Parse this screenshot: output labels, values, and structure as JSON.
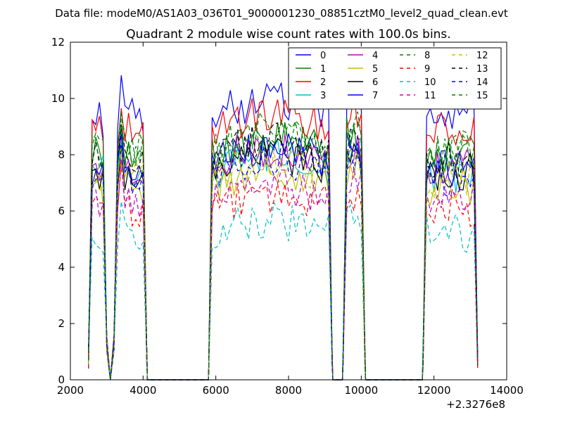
{
  "figure": {
    "suptitle": "Data file: modeM0/AS1A03_036T01_9000001230_08851cztM0_level2_quad_clean.evt",
    "title": "Quadrant 2 module wise count rates with 100.0s bins.",
    "x_offset_label": "+2.3276e8"
  },
  "chart_data": {
    "type": "line",
    "title": "Quadrant 2 module wise count rates with 100.0s bins.",
    "xlabel": "",
    "ylabel": "",
    "xlim": [
      2000,
      14000
    ],
    "ylim": [
      0,
      12
    ],
    "x_offset": 232760000,
    "xticks": [
      2000,
      4000,
      6000,
      8000,
      10000,
      12000,
      14000
    ],
    "yticks": [
      0,
      2,
      4,
      6,
      8,
      10,
      12
    ],
    "grid": false,
    "legend_position": "top-right",
    "legend_columns": 4,
    "segments": [
      {
        "x": [
          2500,
          2600,
          2700,
          2800,
          2900,
          3000,
          3100,
          3200,
          3300,
          3400,
          3500,
          3600,
          3700,
          3800,
          3900,
          4000,
          4100
        ],
        "shape": "pulse"
      },
      {
        "x": [
          5800,
          5900,
          6000,
          6100,
          6200,
          6300,
          6400,
          6500,
          6600,
          6700,
          6800,
          6900,
          7000,
          7100,
          7200,
          7300,
          7400,
          7500,
          7600,
          7700,
          7800,
          7900,
          8000,
          8100,
          8200,
          8300,
          8400,
          8500,
          8600,
          8700,
          8800,
          8900,
          9000,
          9100,
          9200
        ]
      },
      {
        "x": [
          9500,
          9600,
          9700,
          9800,
          9900,
          10000,
          10100
        ]
      },
      {
        "x": [
          11700,
          11800,
          11900,
          12000,
          12100,
          12200,
          12300,
          12400,
          12500,
          12600,
          12700,
          12800,
          12900,
          13000,
          13100,
          13200
        ]
      }
    ],
    "series": [
      {
        "name": "0",
        "color": "#0000ff",
        "dash": "solid",
        "level": 9.3
      },
      {
        "name": "1",
        "color": "#008000",
        "dash": "solid",
        "level": 8.0
      },
      {
        "name": "2",
        "color": "#ff0000",
        "dash": "solid",
        "level": 8.8
      },
      {
        "name": "3",
        "color": "#00bfbf",
        "dash": "solid",
        "level": 7.3
      },
      {
        "name": "4",
        "color": "#bf00bf",
        "dash": "solid",
        "level": 7.6
      },
      {
        "name": "5",
        "color": "#bfbf00",
        "dash": "solid",
        "level": 6.9
      },
      {
        "name": "6",
        "color": "#000000",
        "dash": "solid",
        "level": 7.4
      },
      {
        "name": "7",
        "color": "#0000ff",
        "dash": "solid",
        "level": 7.6
      },
      {
        "name": "8",
        "color": "#008000",
        "dash": "dashed",
        "level": 8.2
      },
      {
        "name": "9",
        "color": "#ff0000",
        "dash": "dashed",
        "level": 6.1
      },
      {
        "name": "10",
        "color": "#00bfbf",
        "dash": "dashed",
        "level": 5.2
      },
      {
        "name": "11",
        "color": "#bf00bf",
        "dash": "dashed",
        "level": 6.4
      },
      {
        "name": "12",
        "color": "#bfbf00",
        "dash": "dashed",
        "level": 7.1
      },
      {
        "name": "13",
        "color": "#000000",
        "dash": "dashed",
        "level": 7.8
      },
      {
        "name": "14",
        "color": "#0000ff",
        "dash": "dashed",
        "level": 7.2
      },
      {
        "name": "15",
        "color": "#008000",
        "dash": "dashed",
        "level": 8.0
      }
    ]
  }
}
